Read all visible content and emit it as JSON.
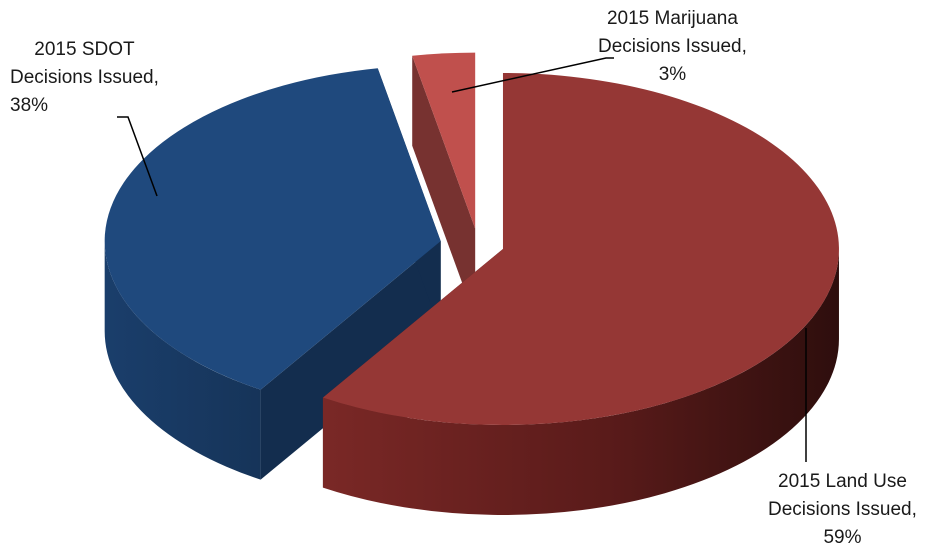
{
  "chart_data": {
    "type": "pie",
    "style": "3d-exploded",
    "slices": [
      {
        "label_lines": [
          "2015 Land Use",
          "Decisions Issued,",
          "59%"
        ],
        "name": "2015 Land Use Decisions Issued",
        "value": 59,
        "color": "#953735"
      },
      {
        "label_lines": [
          "2015 SDOT",
          "Decisions Issued,",
          "38%"
        ],
        "name": "2015 SDOT Decisions Issued",
        "value": 38,
        "color": "#1F497D"
      },
      {
        "label_lines": [
          "2015 Marijuana",
          "Decisions Issued,",
          "3%"
        ],
        "name": "2015 Marijuana Decisions Issued",
        "value": 3,
        "color": "#C0504D"
      }
    ]
  }
}
